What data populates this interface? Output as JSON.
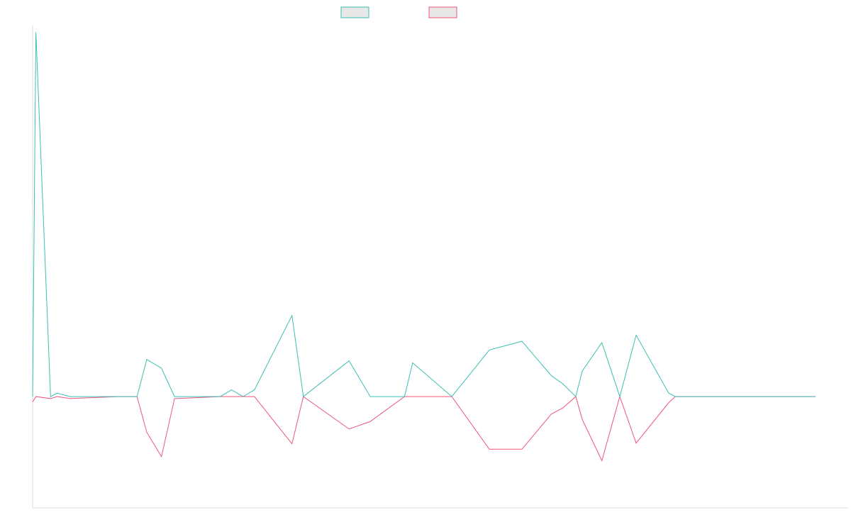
{
  "chart_data": {
    "type": "line",
    "title": "",
    "xlabel": "",
    "ylabel": "",
    "grid": false,
    "legend_position": "top-center",
    "x": [
      0,
      2,
      11,
      15,
      23,
      52,
      58,
      64,
      70,
      79,
      87,
      115,
      122,
      129,
      136,
      159,
      166,
      194,
      207,
      228,
      233,
      257,
      280,
      300,
      318,
      325,
      333,
      337,
      349,
      360,
      370,
      390,
      394,
      412,
      430,
      447,
      457,
      462,
      468,
      480
    ],
    "ylim": [
      -16.5,
      55
    ],
    "xlim": [
      0,
      500
    ],
    "series": [
      {
        "color": "#3bbfb0",
        "values": [
          0,
          54,
          0,
          0.5,
          0,
          0,
          0,
          0,
          5.5,
          4.2,
          0,
          0,
          1,
          0,
          1,
          12,
          0,
          5.3,
          0,
          0,
          5.0,
          0,
          6.9,
          8.2,
          3.1,
          1.9,
          0,
          3.8,
          8.0,
          0,
          9.1,
          0.5,
          0,
          0,
          0,
          0,
          0,
          0,
          0,
          0
        ]
      },
      {
        "color": "#f0557a",
        "values": [
          -0.8,
          0,
          -0.3,
          0,
          -0.3,
          0,
          0,
          0,
          -5.3,
          -8.9,
          -0.3,
          0,
          0,
          0,
          0,
          -7.0,
          0,
          -4.8,
          -3.7,
          0,
          0,
          0,
          -7.8,
          -7.8,
          -2.6,
          -1.7,
          0,
          -3.4,
          -9.5,
          0,
          -6.9,
          -0.9,
          0,
          0,
          0,
          0,
          0,
          0,
          0,
          0
        ]
      }
    ]
  },
  "legend": {
    "swatch_fill": "#e8e8e8"
  }
}
